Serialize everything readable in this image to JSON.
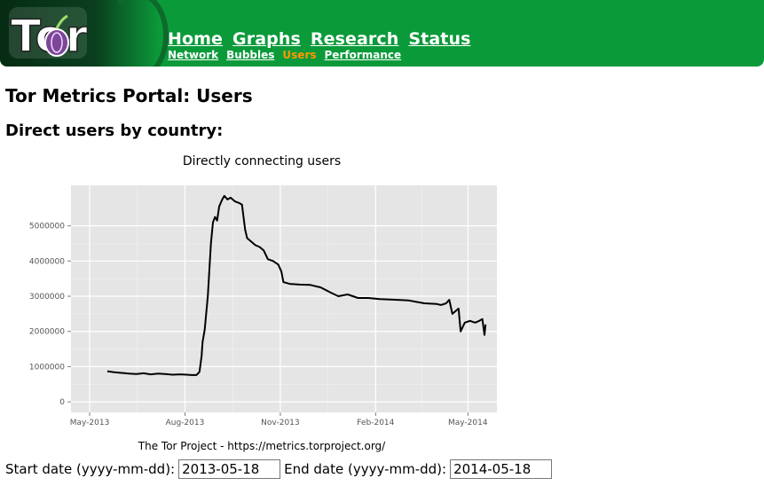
{
  "header": {
    "logo_text": "Tor",
    "nav_main": [
      "Home",
      "Graphs",
      "Research",
      "Status"
    ],
    "nav_sub": [
      {
        "label": "Network",
        "active": false
      },
      {
        "label": "Bubbles",
        "active": false
      },
      {
        "label": "Users",
        "active": true
      },
      {
        "label": "Performance",
        "active": false
      }
    ],
    "colors": {
      "banner": "#0b9a3a",
      "active_sub": "#ff9900"
    }
  },
  "page_title": "Tor Metrics Portal: Users",
  "section_title": "Direct users by country:",
  "chart_data": {
    "type": "line",
    "title": "Directly connecting users",
    "caption": "The Tor Project - https://metrics.torproject.org/",
    "xlabel": "",
    "ylabel": "",
    "x_tick_labels": [
      "May-2013",
      "Aug-2013",
      "Nov-2013",
      "Feb-2014",
      "May-2014"
    ],
    "x_ticks": [
      "2013-05-01",
      "2013-08-01",
      "2013-11-01",
      "2014-02-01",
      "2014-05-01"
    ],
    "xlim": [
      "2013-04-13",
      "2014-05-29"
    ],
    "y_tick_labels": [
      "0",
      "1000000",
      "2000000",
      "3000000",
      "4000000",
      "5000000"
    ],
    "y_ticks": [
      0,
      1000000,
      2000000,
      3000000,
      4000000,
      5000000
    ],
    "ylim": [
      -300000,
      6150000
    ],
    "grid": true,
    "series": [
      {
        "points": [
          [
            "2013-05-18",
            870000
          ],
          [
            "2013-05-25",
            840000
          ],
          [
            "2013-06-01",
            820000
          ],
          [
            "2013-06-08",
            800000
          ],
          [
            "2013-06-15",
            790000
          ],
          [
            "2013-06-22",
            810000
          ],
          [
            "2013-06-29",
            780000
          ],
          [
            "2013-07-06",
            800000
          ],
          [
            "2013-07-13",
            790000
          ],
          [
            "2013-07-20",
            770000
          ],
          [
            "2013-07-27",
            780000
          ],
          [
            "2013-08-03",
            770000
          ],
          [
            "2013-08-07",
            760000
          ],
          [
            "2013-08-12",
            760000
          ],
          [
            "2013-08-15",
            850000
          ],
          [
            "2013-08-17",
            1300000
          ],
          [
            "2013-08-18",
            1700000
          ],
          [
            "2013-08-20",
            2050000
          ],
          [
            "2013-08-23",
            3000000
          ],
          [
            "2013-08-26",
            4500000
          ],
          [
            "2013-08-28",
            5100000
          ],
          [
            "2013-08-30",
            5250000
          ],
          [
            "2013-09-01",
            5150000
          ],
          [
            "2013-09-03",
            5550000
          ],
          [
            "2013-09-06",
            5750000
          ],
          [
            "2013-09-08",
            5850000
          ],
          [
            "2013-09-11",
            5750000
          ],
          [
            "2013-09-14",
            5800000
          ],
          [
            "2013-09-18",
            5700000
          ],
          [
            "2013-09-22",
            5650000
          ],
          [
            "2013-09-25",
            5600000
          ],
          [
            "2013-09-28",
            4900000
          ],
          [
            "2013-09-30",
            4650000
          ],
          [
            "2013-10-04",
            4550000
          ],
          [
            "2013-10-08",
            4450000
          ],
          [
            "2013-10-12",
            4400000
          ],
          [
            "2013-10-16",
            4300000
          ],
          [
            "2013-10-20",
            4050000
          ],
          [
            "2013-10-25",
            4000000
          ],
          [
            "2013-10-30",
            3900000
          ],
          [
            "2013-11-02",
            3700000
          ],
          [
            "2013-11-04",
            3400000
          ],
          [
            "2013-11-10",
            3350000
          ],
          [
            "2013-11-20",
            3330000
          ],
          [
            "2013-11-30",
            3320000
          ],
          [
            "2013-12-10",
            3250000
          ],
          [
            "2013-12-20",
            3100000
          ],
          [
            "2013-12-27",
            3000000
          ],
          [
            "2014-01-05",
            3050000
          ],
          [
            "2014-01-15",
            2950000
          ],
          [
            "2014-01-25",
            2950000
          ],
          [
            "2014-02-05",
            2920000
          ],
          [
            "2014-02-20",
            2900000
          ],
          [
            "2014-03-05",
            2880000
          ],
          [
            "2014-03-20",
            2800000
          ],
          [
            "2014-04-01",
            2780000
          ],
          [
            "2014-04-05",
            2750000
          ],
          [
            "2014-04-10",
            2800000
          ],
          [
            "2014-04-13",
            2900000
          ],
          [
            "2014-04-16",
            2500000
          ],
          [
            "2014-04-20",
            2600000
          ],
          [
            "2014-04-22",
            2650000
          ],
          [
            "2014-04-24",
            2000000
          ],
          [
            "2014-04-28",
            2250000
          ],
          [
            "2014-05-03",
            2300000
          ],
          [
            "2014-05-08",
            2250000
          ],
          [
            "2014-05-12",
            2300000
          ],
          [
            "2014-05-15",
            2350000
          ],
          [
            "2014-05-17",
            1900000
          ],
          [
            "2014-05-18",
            2200000
          ]
        ]
      }
    ]
  },
  "form": {
    "start_label": "Start date (yyyy-mm-dd):",
    "start_value": "2013-05-18",
    "end_label": "End date (yyyy-mm-dd):",
    "end_value": "2014-05-18"
  }
}
